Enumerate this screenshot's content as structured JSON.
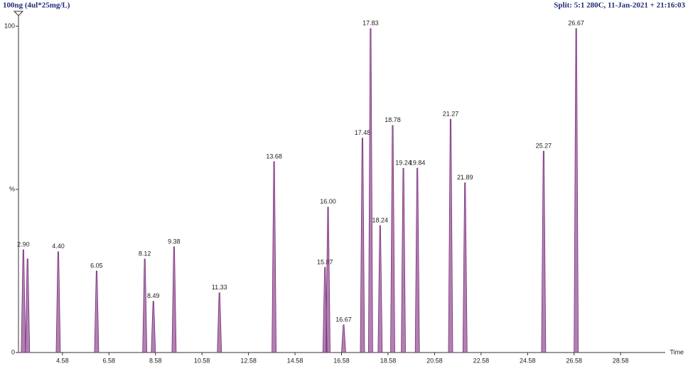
{
  "chart_data": {
    "type": "chromatogram",
    "title": "100ng (4ul*25mg/L)",
    "subtitle": "Split: 5:1 280C,  11-Jan-2021 + 21:16:03",
    "x_label": "Time",
    "color": "#7b2d7b",
    "x": [
      2.9,
      3.08,
      4.4,
      6.05,
      8.12,
      8.49,
      9.38,
      11.33,
      13.68,
      15.87,
      16.0,
      16.67,
      17.48,
      17.83,
      18.24,
      18.78,
      19.24,
      19.84,
      21.27,
      21.89,
      25.27,
      26.67
    ],
    "peak_labels": [
      "2.90",
      null,
      "4.40",
      "6.05",
      "8.12",
      "8.49",
      "9.38",
      "11.33",
      "13.68",
      "15.87",
      "16.00",
      "16.67",
      "17.48",
      "17.83",
      "18.24",
      "18.78",
      "19.24",
      "19.84",
      "21.27",
      "21.89",
      "25.27",
      "26.67"
    ],
    "values": [
      31.5,
      28.7,
      30.9,
      25,
      28.7,
      15.7,
      32.4,
      18.3,
      58.5,
      26.1,
      44.6,
      8.5,
      65.7,
      99.3,
      38.9,
      69.6,
      56.5,
      56.5,
      71.5,
      52,
      61.7,
      99.3
    ],
    "xlim": [
      2.69,
      30.5
    ],
    "ylim": [
      0,
      100
    ],
    "xticks": [
      4.58,
      6.58,
      8.58,
      10.58,
      12.58,
      14.58,
      16.58,
      18.58,
      20.58,
      22.58,
      24.58,
      26.58,
      28.58
    ],
    "yticks": [
      0,
      {
        "value": 50,
        "label": "%"
      },
      100
    ]
  }
}
